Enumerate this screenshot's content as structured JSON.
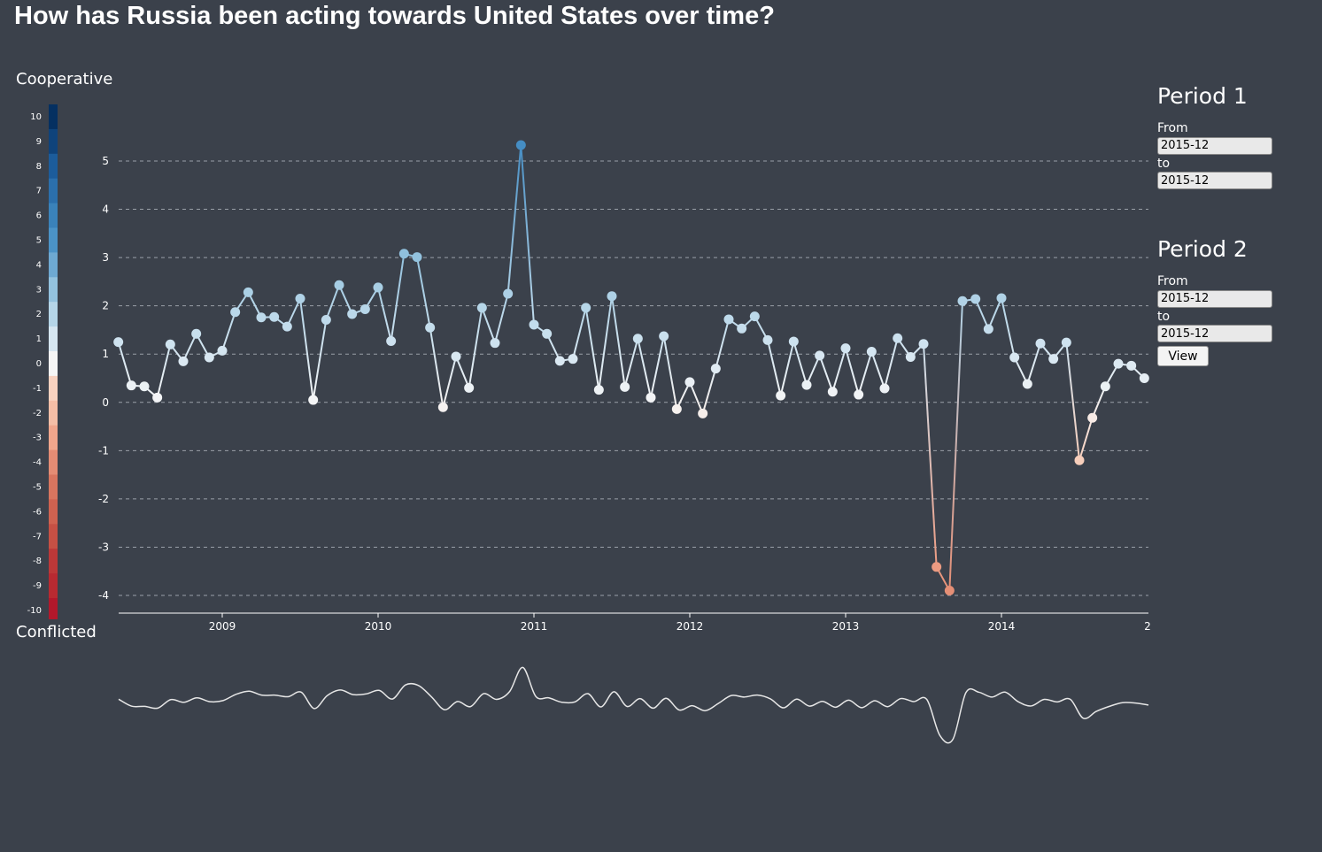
{
  "page_title": "How has Russia been acting towards United States over time?",
  "color_scale": {
    "top_label": "Cooperative",
    "bottom_label": "Conflicted",
    "ticks": [
      "10",
      "9",
      "8",
      "7",
      "6",
      "5",
      "4",
      "3",
      "2",
      "1",
      "0",
      "-1",
      "-2",
      "-3",
      "-4",
      "-5",
      "-6",
      "-7",
      "-8",
      "-9",
      "-10"
    ],
    "colors": [
      "#053061",
      "#0f437b",
      "#1c5c9b",
      "#2b6fac",
      "#3a82ba",
      "#4b93c7",
      "#6ea9d2",
      "#93c2de",
      "#b5d5e8",
      "#d6e6f1",
      "#f6f6f6",
      "#f8d2c0",
      "#f5bea6",
      "#f1a68c",
      "#e48c74",
      "#d8755f",
      "#cf6250",
      "#c65044",
      "#bc3838",
      "#b82a31",
      "#b2182b"
    ]
  },
  "periods": [
    {
      "title": "Period 1",
      "from_label": "From",
      "to_label": "to",
      "from_value": "2015-12",
      "to_value": "2015-12"
    },
    {
      "title": "Period 2",
      "from_label": "From",
      "to_label": "to",
      "from_value": "2015-12",
      "to_value": "2015-12"
    }
  ],
  "view_label": "View",
  "chart_data": {
    "type": "line",
    "x_start": "2008-05",
    "x_tick_labels": [
      "2009",
      "2010",
      "2011",
      "2012",
      "2013",
      "2014",
      "2"
    ],
    "ylim": [
      -4.4,
      5.6
    ],
    "y_ticks": [
      "5",
      "4",
      "3",
      "2",
      "1",
      "0",
      "-1",
      "-2",
      "-3",
      "-4"
    ],
    "grid": true,
    "series": [
      {
        "values": [
          1.25,
          0.35,
          0.33,
          0.1,
          1.2,
          0.85,
          1.42,
          0.93,
          1.07,
          1.87,
          2.28,
          1.76,
          1.77,
          1.57,
          2.15,
          0.05,
          1.71,
          2.43,
          1.83,
          1.93,
          2.38,
          1.27,
          3.08,
          3.01,
          1.55,
          -0.1,
          0.95,
          0.3,
          1.96,
          1.23,
          2.25,
          5.33,
          1.61,
          1.42,
          0.86,
          0.9,
          1.96,
          0.26,
          2.2,
          0.32,
          1.32,
          0.1,
          1.37,
          -0.14,
          0.42,
          -0.23,
          0.7,
          1.72,
          1.53,
          1.78,
          1.29,
          0.14,
          1.26,
          0.36,
          0.97,
          0.22,
          1.12,
          0.16,
          1.05,
          0.29,
          1.33,
          0.94,
          1.21,
          -3.41,
          -3.9,
          2.1,
          2.14,
          1.52,
          2.16,
          0.93,
          0.38,
          1.22,
          0.9,
          1.24,
          -1.2,
          -0.32,
          0.33,
          0.8,
          0.76,
          0.5
        ]
      }
    ]
  }
}
